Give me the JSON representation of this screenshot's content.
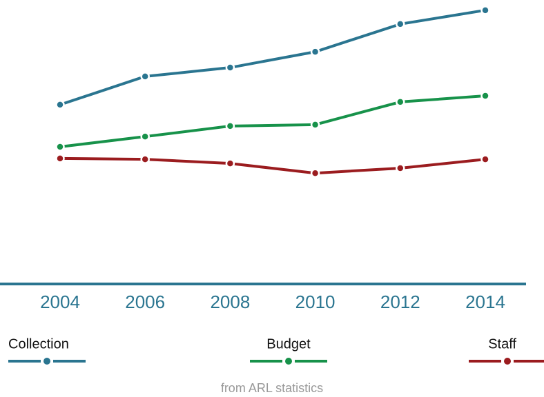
{
  "chart_data": {
    "type": "line",
    "categories": [
      "2004",
      "2006",
      "2008",
      "2010",
      "2012",
      "2014"
    ],
    "series": [
      {
        "name": "Collection",
        "color": "#2a7590",
        "values": [
          64.7,
          74.9,
          78.1,
          83.8,
          93.8,
          98.8
        ]
      },
      {
        "name": "Budget",
        "color": "#17924a",
        "values": [
          49.5,
          53.2,
          57.0,
          57.5,
          65.7,
          67.9
        ]
      },
      {
        "name": "Staff",
        "color": "#9b1c1f",
        "values": [
          45.3,
          45.0,
          43.5,
          40.0,
          41.8,
          45.0
        ]
      }
    ],
    "ylim": [
      0,
      100
    ],
    "axis_color": "#2a7590",
    "legend": "bottom",
    "caption": "from ARL statistics"
  }
}
